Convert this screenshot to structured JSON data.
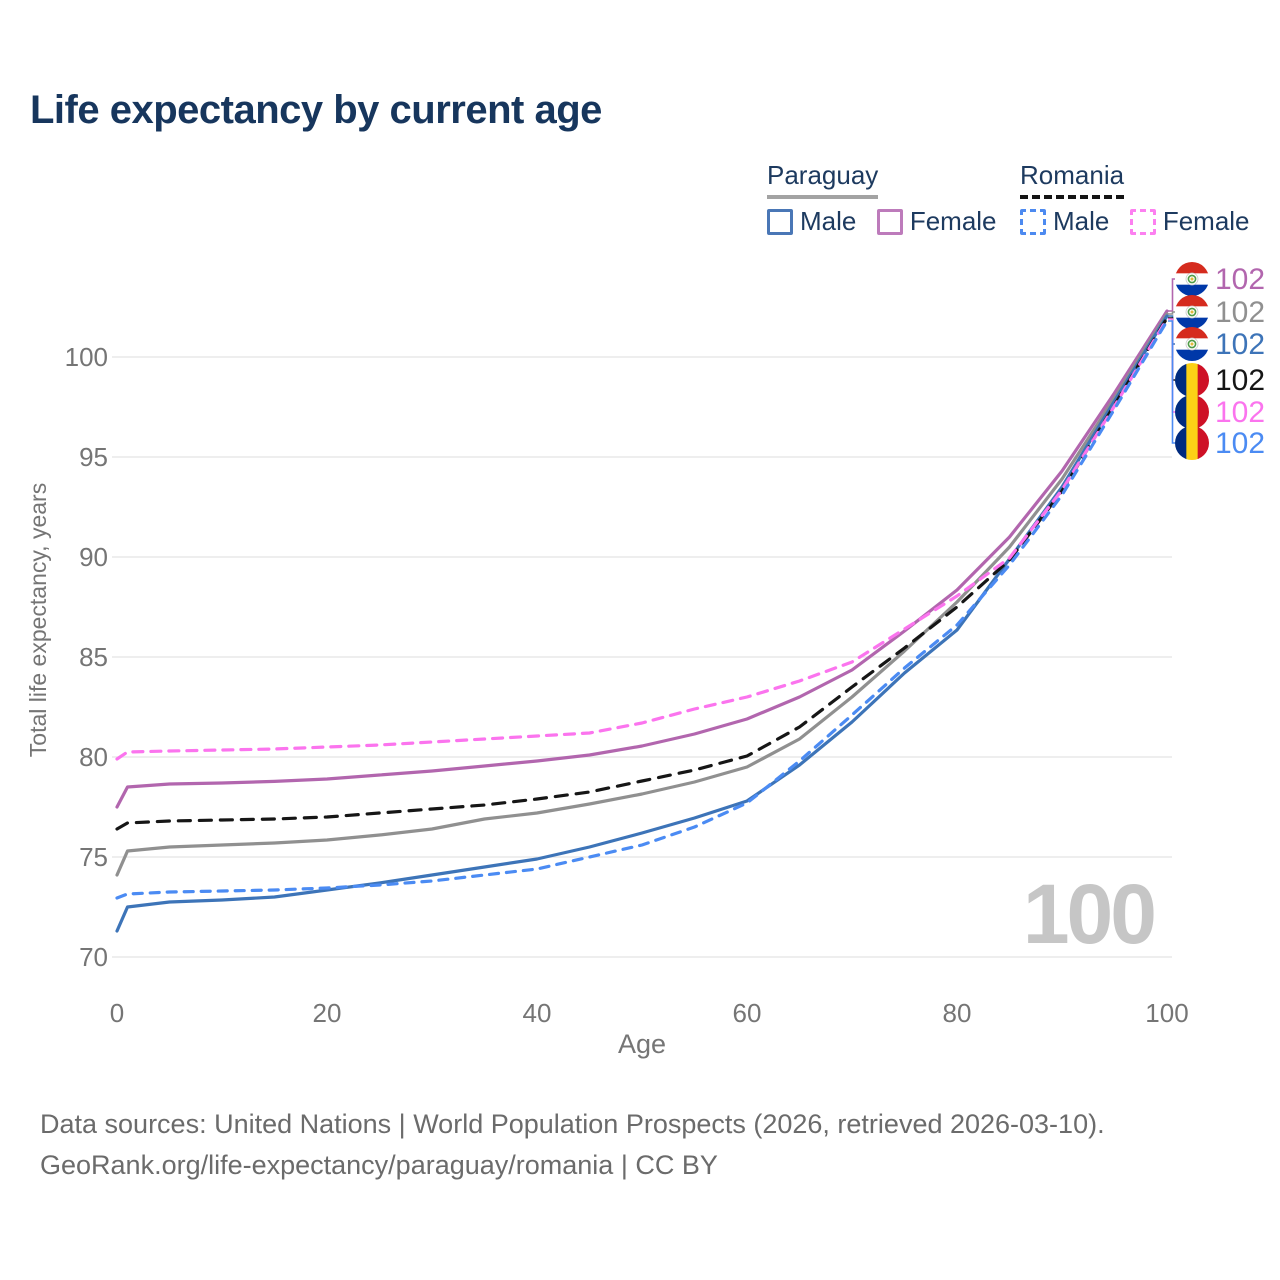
{
  "title": "Life expectancy by current age",
  "legend": {
    "groups": [
      {
        "country": "Paraguay",
        "style": "solid",
        "underline_color": "#a3a3a3",
        "items": [
          {
            "label": "Male",
            "color": "#4a77b6"
          },
          {
            "label": "Female",
            "color": "#bd7bbb"
          }
        ]
      },
      {
        "country": "Romania",
        "style": "dashed",
        "underline_color": "#141414",
        "items": [
          {
            "label": "Male",
            "color": "#4d8af0"
          },
          {
            "label": "Female",
            "color": "#fc80f0"
          }
        ]
      }
    ]
  },
  "chart_data": {
    "type": "line",
    "title": "Life expectancy by current age",
    "xlabel": "Age",
    "ylabel": "Total life expectancy, years",
    "x_ticks": [
      0,
      20,
      40,
      60,
      80,
      100
    ],
    "y_ticks": [
      70,
      75,
      80,
      85,
      90,
      95,
      100
    ],
    "xlim": [
      0,
      100
    ],
    "ylim": [
      70,
      102.5
    ],
    "grid": true,
    "legend_position": "top-right",
    "x": [
      0,
      1,
      5,
      10,
      15,
      20,
      25,
      30,
      35,
      40,
      45,
      50,
      55,
      60,
      65,
      70,
      75,
      80,
      85,
      90,
      95,
      100
    ],
    "series": [
      {
        "name": "Paraguay Female",
        "country": "Paraguay",
        "sex": "Female",
        "color": "#b266ae",
        "dashed": false,
        "end_label": "102",
        "values": [
          77.5,
          78.5,
          78.65,
          78.7,
          78.78,
          78.9,
          79.1,
          79.3,
          79.55,
          79.8,
          80.1,
          80.55,
          81.15,
          81.9,
          83.0,
          84.35,
          86.3,
          88.35,
          91.0,
          94.3,
          98.2,
          102.3
        ]
      },
      {
        "name": "Paraguay Both sexes",
        "country": "Paraguay",
        "sex": "Both sexes",
        "color": "#909090",
        "dashed": false,
        "end_label": "102",
        "values": [
          74.1,
          75.3,
          75.5,
          75.6,
          75.7,
          75.85,
          76.1,
          76.4,
          76.9,
          77.2,
          77.65,
          78.15,
          78.75,
          79.5,
          80.9,
          83.0,
          85.3,
          87.75,
          90.5,
          93.9,
          97.95,
          102.15
        ]
      },
      {
        "name": "Paraguay Male",
        "country": "Paraguay",
        "sex": "Male",
        "color": "#3d74b8",
        "dashed": false,
        "end_label": "102",
        "values": [
          71.3,
          72.5,
          72.75,
          72.85,
          73.0,
          73.35,
          73.7,
          74.1,
          74.5,
          74.9,
          75.5,
          76.2,
          76.95,
          77.8,
          79.6,
          81.75,
          84.2,
          86.35,
          89.9,
          93.5,
          97.8,
          102.05
        ]
      },
      {
        "name": "Romania Both sexes",
        "country": "Romania",
        "sex": "Both sexes",
        "color": "#161616",
        "dashed": true,
        "end_label": "102",
        "values": [
          76.4,
          76.7,
          76.8,
          76.85,
          76.9,
          77.0,
          77.2,
          77.4,
          77.6,
          77.9,
          78.25,
          78.8,
          79.35,
          80.05,
          81.5,
          83.5,
          85.45,
          87.5,
          89.85,
          93.3,
          97.6,
          101.95
        ]
      },
      {
        "name": "Romania Female",
        "country": "Romania",
        "sex": "Female",
        "color": "#fb74ee",
        "dashed": true,
        "end_label": "102",
        "values": [
          79.9,
          80.25,
          80.3,
          80.35,
          80.4,
          80.5,
          80.6,
          80.75,
          80.9,
          81.05,
          81.2,
          81.7,
          82.4,
          83.0,
          83.8,
          84.75,
          86.4,
          88.05,
          89.95,
          93.35,
          97.55,
          101.9
        ]
      },
      {
        "name": "Romania Male",
        "country": "Romania",
        "sex": "Male",
        "color": "#4b8bf3",
        "dashed": true,
        "end_label": "102",
        "values": [
          72.95,
          73.15,
          73.25,
          73.3,
          73.35,
          73.45,
          73.6,
          73.8,
          74.1,
          74.4,
          75.0,
          75.6,
          76.5,
          77.7,
          79.8,
          82.1,
          84.45,
          86.6,
          89.6,
          93.1,
          97.4,
          101.8
        ]
      }
    ]
  },
  "watermark": "100",
  "colors": {
    "title": "#17365d",
    "axis_text": "#757575",
    "grid": "#e9e9e9",
    "footer_text": "#6b6b6b",
    "watermark": "#c6c6c6"
  },
  "flags": {
    "paraguay": {
      "stripes": [
        "#d52b1e",
        "#ffffff",
        "#0038a8"
      ],
      "emblem_ring": "#4e9b47",
      "emblem_center": "#e2b93c"
    },
    "romania": {
      "stripes": [
        "#002b7f",
        "#fcd116",
        "#ce1126"
      ]
    }
  },
  "footer": {
    "line1": "Data sources: United Nations | World Population Prospects (2026, retrieved 2026-03-10).",
    "line2": "GeoRank.org/life-expectancy/paraguay/romania | CC BY"
  }
}
